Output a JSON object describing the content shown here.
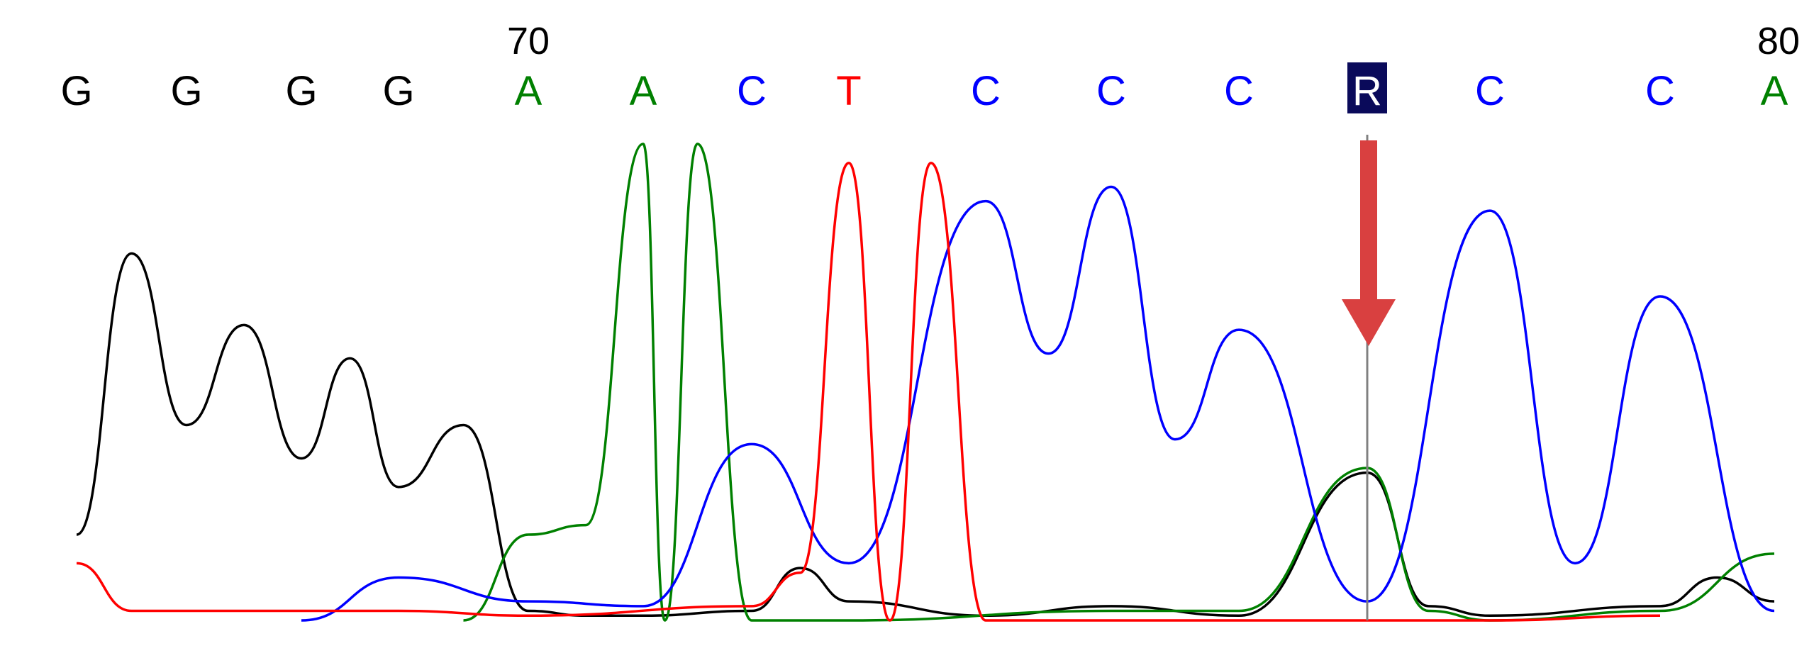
{
  "chart_data": {
    "type": "line",
    "title": "",
    "xlabel": "",
    "ylabel": "",
    "positions": [
      {
        "label": "70",
        "index": 4
      },
      {
        "label": "80",
        "index": 14
      }
    ],
    "base_calls": [
      {
        "index": 0,
        "base": "G"
      },
      {
        "index": 1,
        "base": "G"
      },
      {
        "index": 2,
        "base": "G"
      },
      {
        "index": 3,
        "base": "G"
      },
      {
        "index": 4,
        "base": "A"
      },
      {
        "index": 5,
        "base": "A"
      },
      {
        "index": 6,
        "base": "C"
      },
      {
        "index": 7,
        "base": "T"
      },
      {
        "index": 8,
        "base": "C"
      },
      {
        "index": 9,
        "base": "C"
      },
      {
        "index": 10,
        "base": "C"
      },
      {
        "index": 11,
        "base": "R",
        "highlighted": true,
        "marker": "red-arrow"
      },
      {
        "index": 12,
        "base": "C"
      },
      {
        "index": 13,
        "base": "C"
      },
      {
        "index": 14,
        "base": "A"
      }
    ],
    "series": [
      {
        "base": "G",
        "color": "#000000",
        "points": [
          [
            0,
            0.18
          ],
          [
            0.5,
            0.77
          ],
          [
            1,
            0.41
          ],
          [
            1.5,
            0.62
          ],
          [
            2,
            0.34
          ],
          [
            2.5,
            0.55
          ],
          [
            3,
            0.28
          ],
          [
            3.5,
            0.41
          ],
          [
            4,
            0.02
          ],
          [
            4.5,
            0.01
          ],
          [
            5,
            0.01
          ],
          [
            6,
            0.02
          ],
          [
            6.5,
            0.11
          ],
          [
            7,
            0.04
          ],
          [
            8,
            0.01
          ],
          [
            9,
            0.03
          ],
          [
            10,
            0.01
          ],
          [
            11,
            0.31
          ],
          [
            11.5,
            0.03
          ],
          [
            12,
            0.01
          ],
          [
            13,
            0.03
          ],
          [
            13.5,
            0.09
          ],
          [
            14,
            0.04
          ]
        ]
      },
      {
        "base": "A",
        "color": "#008000",
        "points": [
          [
            3.5,
            0.0
          ],
          [
            4,
            0.18
          ],
          [
            4.5,
            0.2
          ],
          [
            5,
            1.0
          ],
          [
            5.2,
            0.0
          ],
          [
            5.5,
            1.0
          ],
          [
            6,
            0.0
          ],
          [
            7,
            0.0
          ],
          [
            9,
            0.02
          ],
          [
            10,
            0.02
          ],
          [
            11,
            0.32
          ],
          [
            11.5,
            0.02
          ],
          [
            12,
            0.0
          ],
          [
            13,
            0.02
          ],
          [
            14,
            0.14
          ]
        ]
      },
      {
        "base": "C",
        "color": "#0000ff",
        "points": [
          [
            2,
            0.0
          ],
          [
            3,
            0.09
          ],
          [
            4,
            0.04
          ],
          [
            5,
            0.03
          ],
          [
            6,
            0.37
          ],
          [
            7,
            0.12
          ],
          [
            8,
            0.88
          ],
          [
            8.5,
            0.56
          ],
          [
            9,
            0.91
          ],
          [
            9.5,
            0.38
          ],
          [
            10,
            0.61
          ],
          [
            11,
            0.04
          ],
          [
            12,
            0.86
          ],
          [
            12.5,
            0.12
          ],
          [
            13,
            0.68
          ],
          [
            14,
            0.02
          ]
        ]
      },
      {
        "base": "T",
        "color": "#ff0000",
        "points": [
          [
            0,
            0.12
          ],
          [
            0.5,
            0.02
          ],
          [
            1,
            0.02
          ],
          [
            2,
            0.02
          ],
          [
            3,
            0.02
          ],
          [
            4,
            0.01
          ],
          [
            6,
            0.03
          ],
          [
            6.5,
            0.1
          ],
          [
            7,
            0.96
          ],
          [
            7.3,
            0.0
          ],
          [
            7.6,
            0.96
          ],
          [
            8,
            0.0
          ],
          [
            10,
            0.0
          ],
          [
            12,
            0.0
          ],
          [
            13,
            0.01
          ]
        ]
      }
    ],
    "colors": {
      "A": "#008000",
      "C": "#0000ff",
      "G": "#000000",
      "T": "#ff0000",
      "R_highlight": "#0a0a5a",
      "arrow": "#d94040"
    }
  }
}
